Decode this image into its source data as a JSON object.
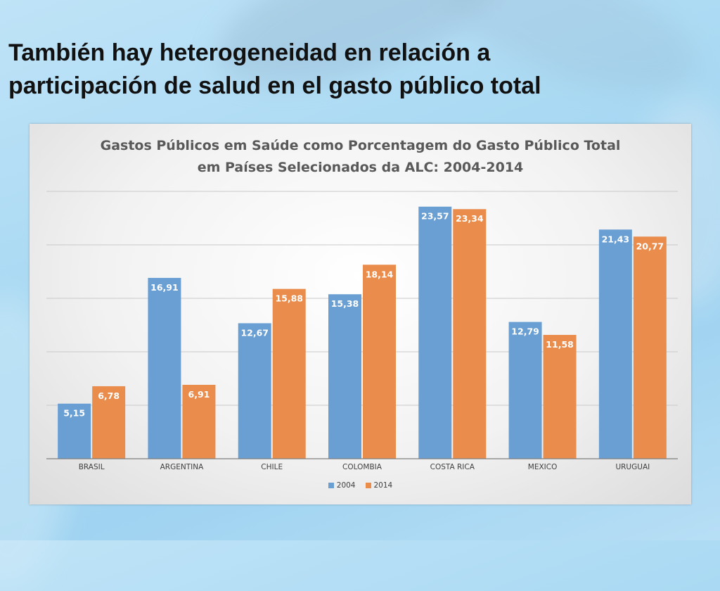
{
  "slide": {
    "title_line1": "También hay heterogeneidad en relación a",
    "title_line2": "participación de salud en el gasto público total"
  },
  "chart_data": {
    "type": "bar",
    "title_line1": "Gastos Públicos em Saúde como Porcentagem do Gasto Público Total",
    "title_line2": "em Países Selecionados da ALC: 2004-2014",
    "categories": [
      "BRASIL",
      "ARGENTINA",
      "CHILE",
      "COLOMBIA",
      "COSTA RICA",
      "MEXICO",
      "URUGUAI"
    ],
    "series": [
      {
        "name": "2004",
        "color": "#6a9fd3",
        "values": [
          5.15,
          16.91,
          12.67,
          15.38,
          23.57,
          12.79,
          21.43
        ],
        "labels": [
          "5,15",
          "16,91",
          "12,67",
          "15,38",
          "23,57",
          "12,79",
          "21,43"
        ]
      },
      {
        "name": "2014",
        "color": "#ea8c4b",
        "values": [
          6.78,
          6.91,
          15.88,
          18.14,
          23.34,
          11.58,
          20.77
        ],
        "labels": [
          "6,78",
          "6,91",
          "15,88",
          "18,14",
          "23,34",
          "11,58",
          "20,77"
        ]
      }
    ],
    "ylim": [
      0,
      25
    ],
    "grid": true,
    "legend_position": "bottom"
  }
}
